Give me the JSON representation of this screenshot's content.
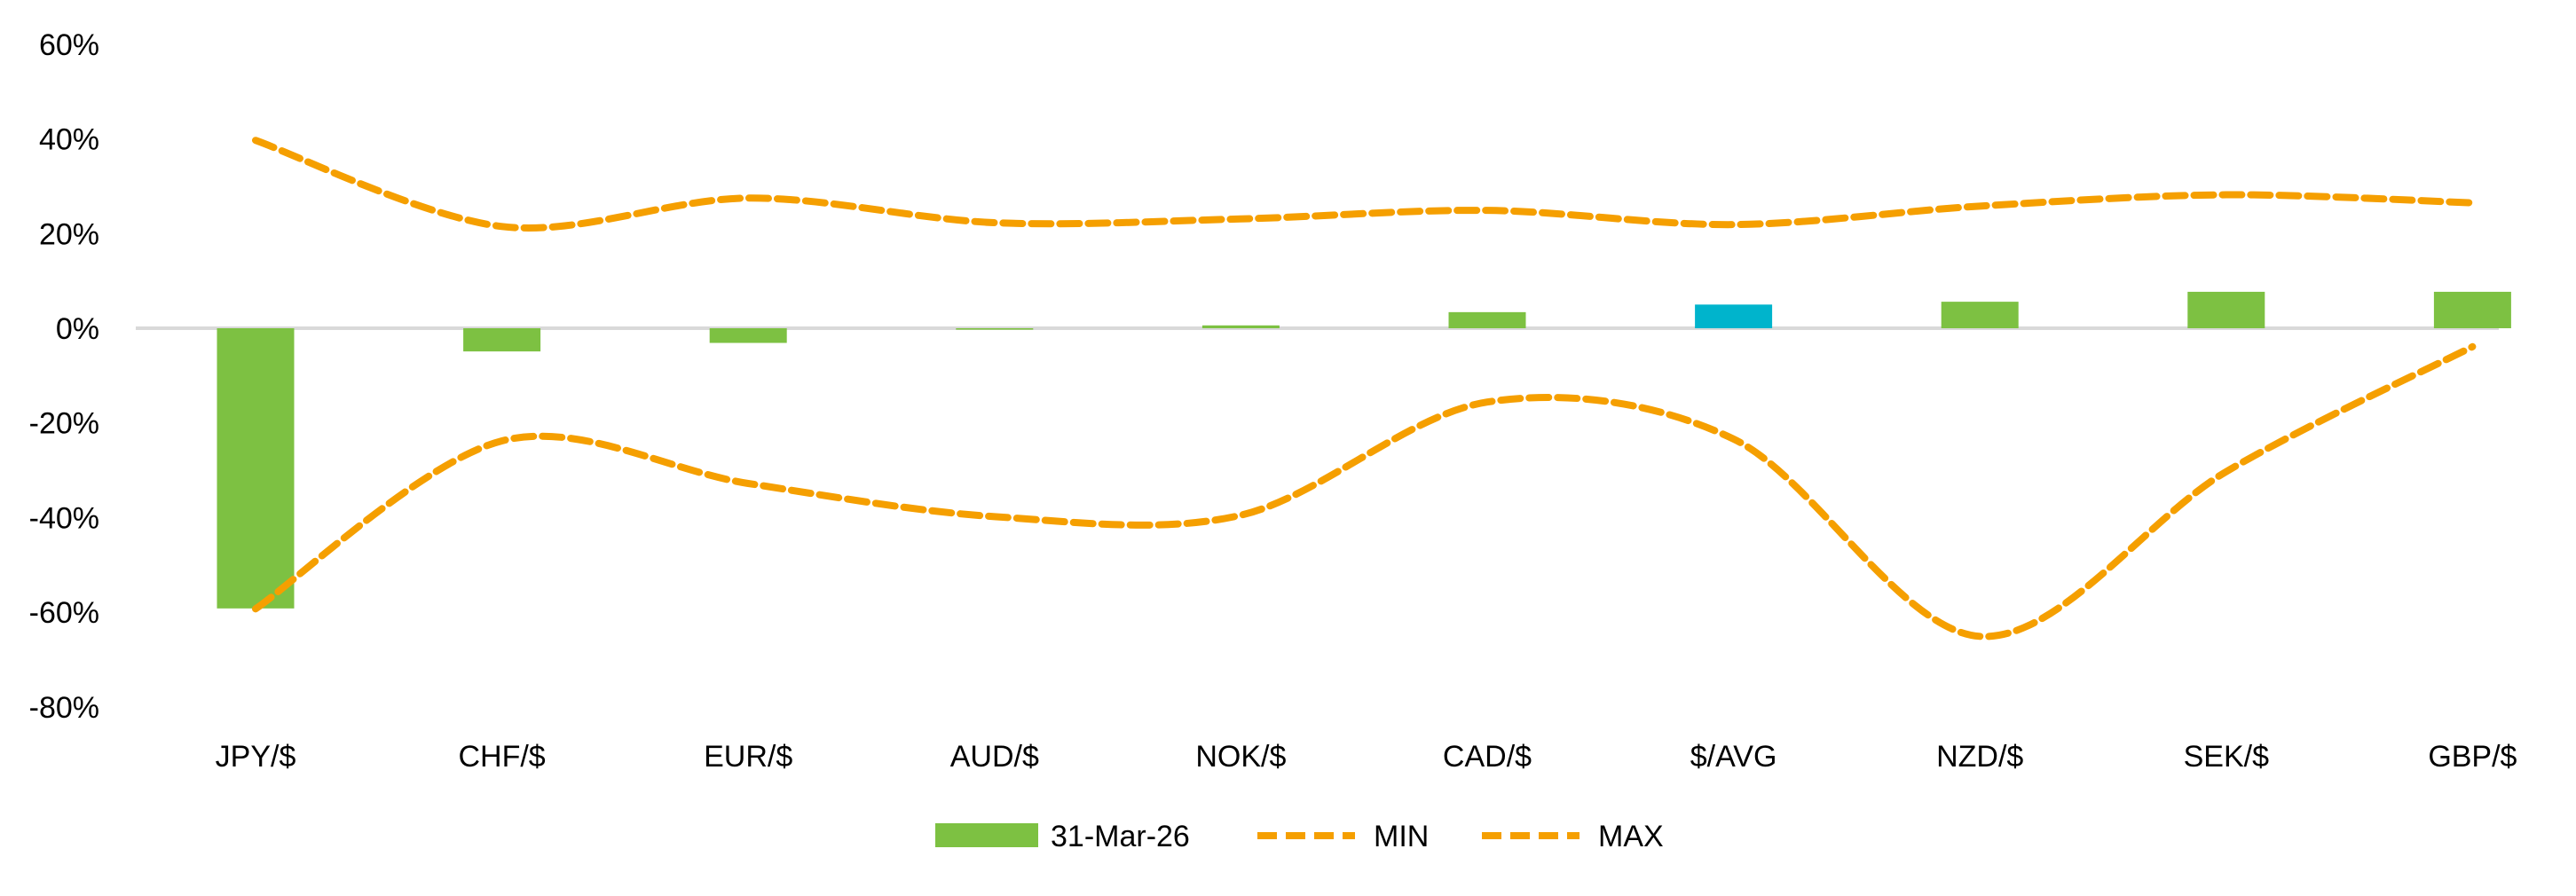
{
  "chart_data": {
    "type": "bar",
    "title": "",
    "xlabel": "",
    "ylabel": "",
    "ylim": [
      -80,
      60
    ],
    "yticks": [
      "60%",
      "40%",
      "20%",
      "0%",
      "-20%",
      "-40%",
      "-60%",
      "-80%"
    ],
    "ytick_values": [
      60,
      40,
      20,
      0,
      -20,
      -40,
      -60,
      -80
    ],
    "grid": false,
    "legend_position": "bottom",
    "categories": [
      "JPY/$",
      "CHF/$",
      "EUR/$",
      "AUD/$",
      "NOK/$",
      "CAD/$",
      "$/AVG",
      "NZD/$",
      "SEK/$",
      "GBP/$"
    ],
    "series": [
      {
        "name": "31-Mar-26",
        "type": "bar",
        "color": "#7DC142",
        "highlight_color": "#00B4CC",
        "highlight_category": "$/AVG",
        "values": [
          -59.2,
          -4.9,
          -3.1,
          -0.3,
          0.6,
          3.4,
          5.0,
          5.6,
          7.7,
          7.7
        ]
      },
      {
        "name": "MIN",
        "type": "line",
        "style": "dashed",
        "color": "#F59F00",
        "values": [
          -59.3,
          -23.8,
          -32.8,
          -39.8,
          -39.5,
          -15.6,
          -23.4,
          -65.1,
          -30.3,
          -3.9
        ]
      },
      {
        "name": "MAX",
        "type": "line",
        "style": "dashed",
        "color": "#F59F00",
        "values": [
          39.7,
          21.5,
          27.5,
          22.3,
          23.1,
          24.9,
          21.9,
          25.8,
          28.2,
          26.5
        ]
      }
    ],
    "axis_color": "#D9D9D9"
  }
}
